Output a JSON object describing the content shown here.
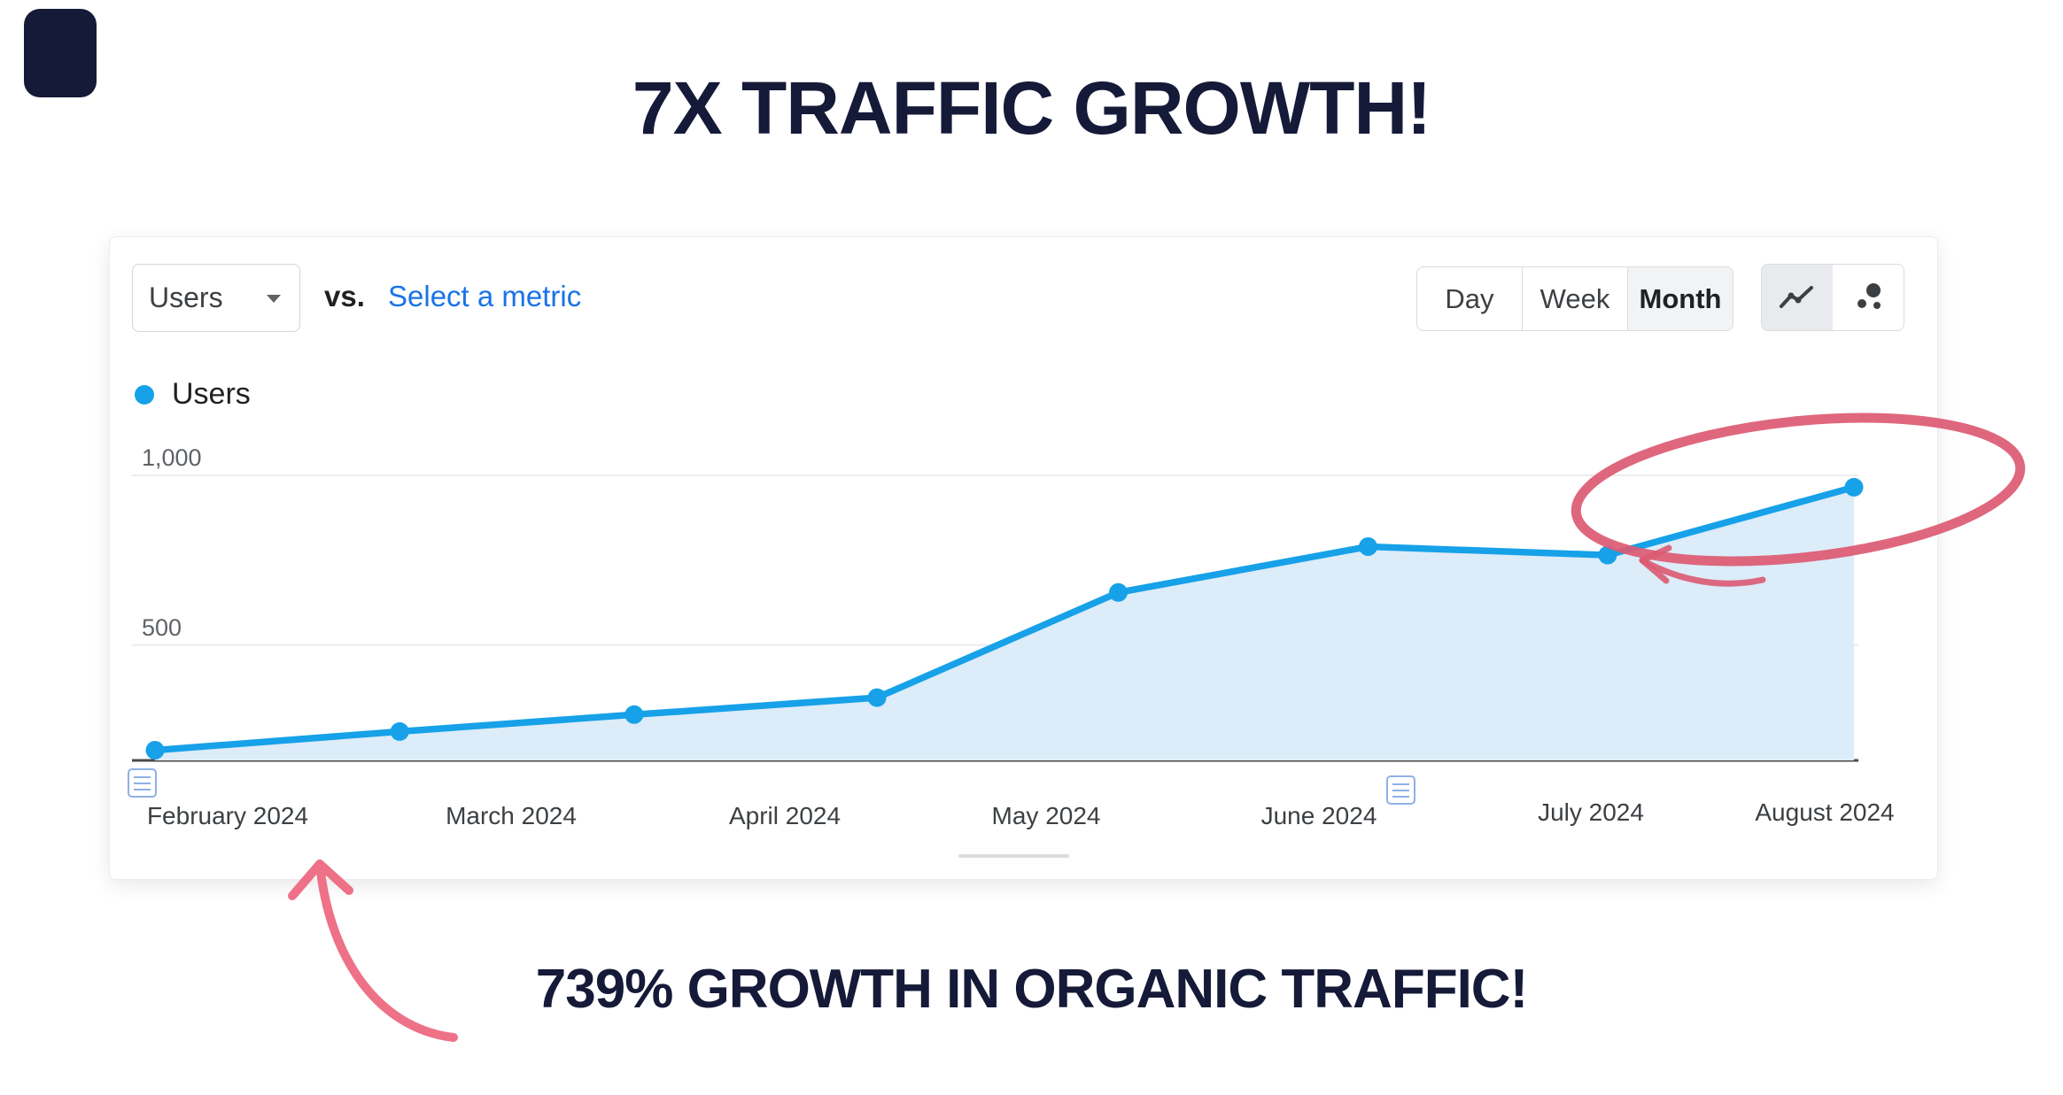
{
  "colors": {
    "navy": "#151a38",
    "line_blue": "#17a1e8",
    "area_blue": "#dcecf9",
    "link_blue": "#1a73e8",
    "pink": "#dc5a72",
    "pink_light": "#ee7187"
  },
  "header": {
    "headline": "7X TRAFFIC GROWTH!"
  },
  "footer": {
    "callout": "739% GROWTH IN ORGANIC TRAFFIC!"
  },
  "toolbar": {
    "metric_dropdown": {
      "value": "Users"
    },
    "vs_label": "vs.",
    "select_metric_link": "Select a metric",
    "granularity_options": [
      {
        "label": "Day",
        "active": false
      },
      {
        "label": "Week",
        "active": false
      },
      {
        "label": "Month",
        "active": true
      }
    ],
    "chart_type_buttons": [
      {
        "name": "line-chart-icon",
        "active": true
      },
      {
        "name": "bubble-chart-icon",
        "active": false
      }
    ]
  },
  "legend": {
    "label": "Users"
  },
  "chart_data": {
    "type": "line",
    "series": [
      {
        "name": "Users",
        "values": [
          190,
          245,
          295,
          345,
          655,
          790,
          765,
          965
        ]
      }
    ],
    "x_axis_labels": [
      "February 2024",
      "March 2024",
      "April 2024",
      "May 2024",
      "June 2024",
      "July 2024",
      "August 2024"
    ],
    "y_axis_ticks": [
      {
        "label": "1,000",
        "value": 1000
      },
      {
        "label": "500",
        "value": 500
      }
    ],
    "ylim": [
      150,
      1100
    ],
    "grid": true,
    "legend_position": "top-left",
    "area_fill": true,
    "highlighted_point_index": 7
  },
  "annotations": {
    "circle": {
      "shape": "hand-drawn ellipse",
      "around": "final data point",
      "color_ref": "pink"
    },
    "small_arrow": {
      "points_to": "July 2024 data point",
      "color_ref": "pink"
    },
    "bottom_arrow": {
      "points_to": "February 2024",
      "color_ref": "pink_light"
    }
  }
}
